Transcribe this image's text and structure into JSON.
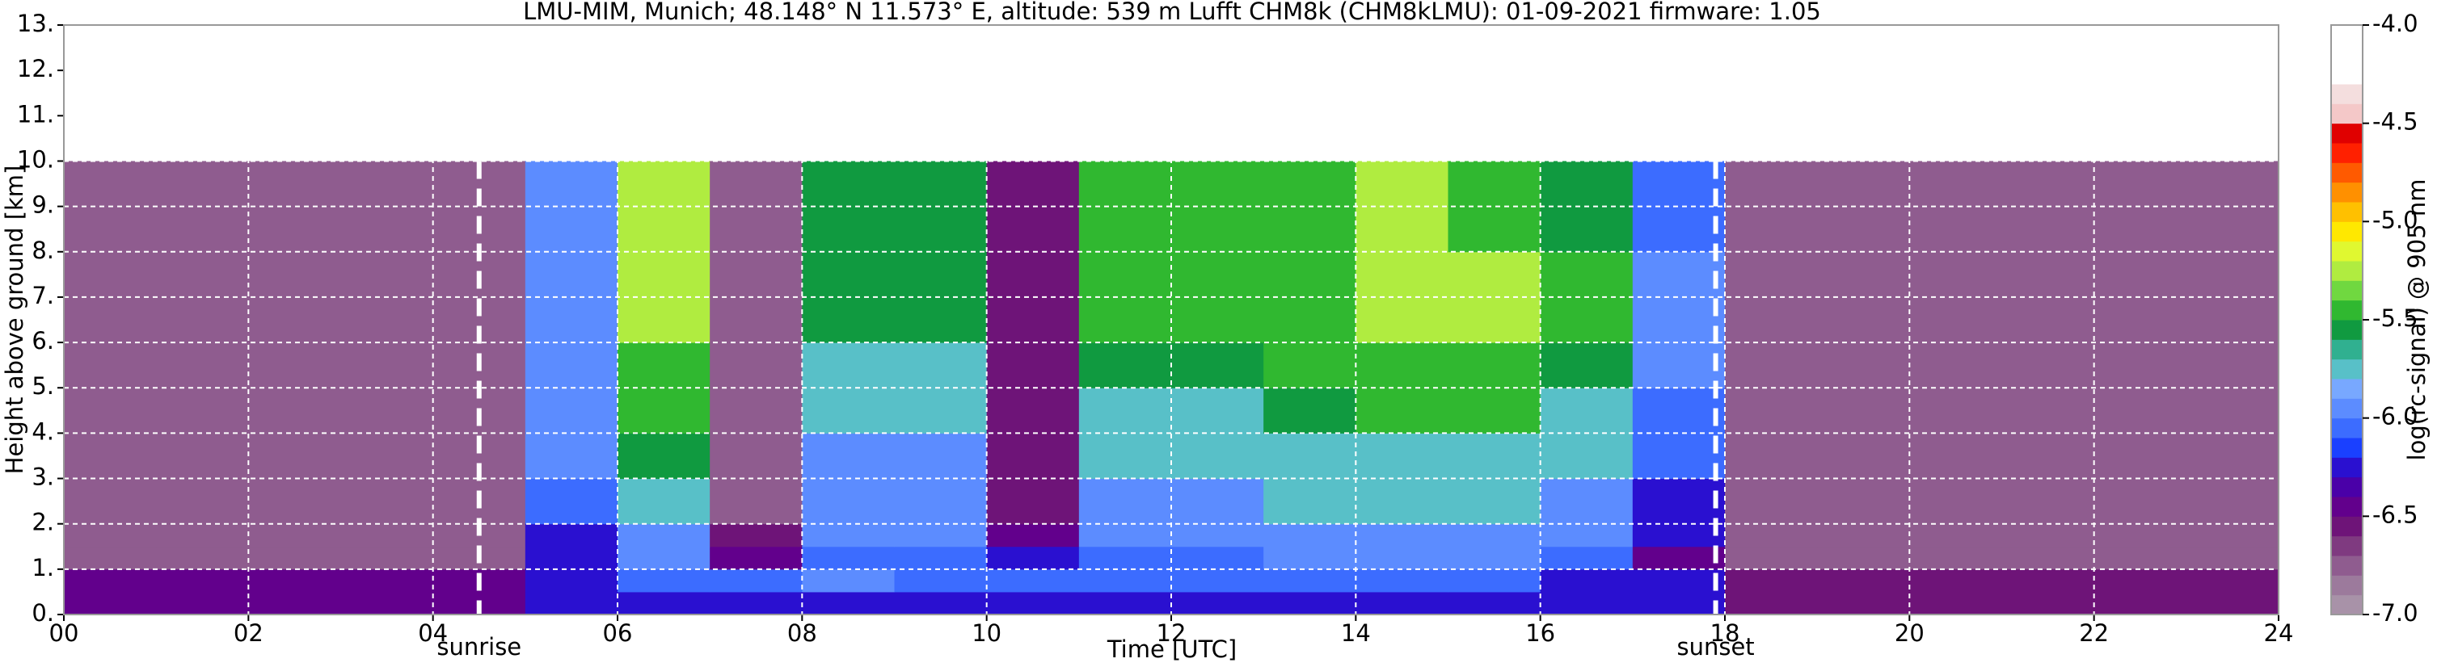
{
  "chart_data": {
    "type": "heatmap",
    "title": "LMU-MIM, Munich; 48.148° N 11.573° E, altitude: 539 m    Lufft CHM8k (CHM8kLMU): 01-09-2021    firmware: 1.05",
    "x_label": "Time [UTC]",
    "y_label": "Height above ground [km]",
    "colorbar_label": "log(rc-signal) @ 905 nm",
    "xlim": [
      0,
      24
    ],
    "xticks": [
      {
        "value": 0,
        "label": "00"
      },
      {
        "value": 2,
        "label": "02"
      },
      {
        "value": 4,
        "label": "04"
      },
      {
        "value": 6,
        "label": "06"
      },
      {
        "value": 8,
        "label": "08"
      },
      10,
      12,
      14,
      16,
      18,
      20,
      22,
      24
    ],
    "ylim": [
      0,
      13
    ],
    "yticks": [
      {
        "value": 0,
        "label": "0."
      },
      {
        "value": 1,
        "label": "1."
      },
      {
        "value": 2,
        "label": "2."
      },
      {
        "value": 3,
        "label": "3."
      },
      {
        "value": 4,
        "label": "4."
      },
      {
        "value": 5,
        "label": "5."
      },
      {
        "value": 6,
        "label": "6."
      },
      {
        "value": 7,
        "label": "7."
      },
      {
        "value": 8,
        "label": "8."
      },
      {
        "value": 9,
        "label": "9."
      },
      {
        "value": 10,
        "label": "10."
      },
      {
        "value": 11,
        "label": "11."
      },
      {
        "value": 12,
        "label": "12."
      },
      {
        "value": 13,
        "label": "13."
      }
    ],
    "grid": true,
    "clim": [
      -7,
      -4
    ],
    "cticks": [
      {
        "value": -4,
        "label": "-4.0"
      },
      -4.5,
      {
        "value": -5,
        "label": "-5.0"
      },
      -5.5,
      {
        "value": -6,
        "label": "-6.0"
      },
      -6.5,
      {
        "value": -7,
        "label": "-7.0"
      }
    ],
    "colors": [
      "#a892a8",
      "#9c7a9c",
      "#8f5c8f",
      "#7f3a80",
      "#6e1478",
      "#62008c",
      "#4a00a8",
      "#2a10d0",
      "#1a40ff",
      "#3c6cff",
      "#5c8cff",
      "#78a8ff",
      "#58c0c8",
      "#30b090",
      "#109a40",
      "#30b830",
      "#70d840",
      "#b0ec40",
      "#e0f830",
      "#ffe800",
      "#ffc000",
      "#ff9000",
      "#ff5a00",
      "#ff2000",
      "#e00000",
      "#f4c8c8",
      "#f4dede",
      "#ffffff",
      "#ffffff",
      "#ffffff"
    ],
    "x_edges": [
      0,
      1,
      2,
      3,
      4,
      5,
      6,
      7,
      8,
      9,
      10,
      11,
      12,
      13,
      14,
      15,
      16,
      17,
      18,
      19,
      20,
      21,
      22,
      23,
      24
    ],
    "y_edges": [
      0,
      0.5,
      1,
      1.5,
      2,
      3,
      4,
      5,
      6,
      8,
      10
    ],
    "z": [
      [
        -6.5,
        -6.5,
        -6.5,
        -6.5,
        -6.4,
        -6.2,
        -6.2,
        -6.2,
        -6.2,
        -6.2,
        -6.2,
        -6.2,
        -6.2,
        -6.2,
        -6.2,
        -6.2,
        -6.3,
        -6.3,
        -6.6,
        -6.6,
        -6.6,
        -6.6,
        -6.6,
        -6.6
      ],
      [
        -6.5,
        -6.5,
        -6.5,
        -6.5,
        -6.4,
        -6.2,
        -6.1,
        -6.1,
        -6.0,
        -6.1,
        -6.1,
        -6.1,
        -6.1,
        -6.1,
        -6.1,
        -6.1,
        -6.3,
        -6.3,
        -6.6,
        -6.6,
        -6.6,
        -6.6,
        -6.6,
        -6.6
      ],
      [
        -6.8,
        -6.8,
        -6.8,
        -6.8,
        -6.7,
        -6.2,
        -6.0,
        -6.5,
        -6.1,
        -6.1,
        -6.3,
        -6.1,
        -6.1,
        -6.0,
        -6.0,
        -6.0,
        -6.1,
        -6.4,
        -6.8,
        -6.8,
        -6.8,
        -6.8,
        -6.8,
        -6.8
      ],
      [
        -6.7,
        -6.8,
        -6.8,
        -6.8,
        -6.7,
        -6.2,
        -5.9,
        -6.6,
        -6.0,
        -6.0,
        -6.5,
        -6.0,
        -6.0,
        -5.9,
        -5.9,
        -5.9,
        -6.0,
        -6.3,
        -6.8,
        -6.8,
        -6.8,
        -6.8,
        -6.8,
        -6.8
      ],
      [
        -6.7,
        -6.8,
        -6.8,
        -6.8,
        -6.7,
        -6.1,
        -5.8,
        -6.7,
        -5.9,
        -5.9,
        -6.6,
        -5.9,
        -5.9,
        -5.8,
        -5.8,
        -5.8,
        -5.9,
        -6.2,
        -6.8,
        -6.8,
        -6.8,
        -6.8,
        -6.8,
        -6.8
      ],
      [
        -6.8,
        -6.8,
        -6.8,
        -6.8,
        -6.7,
        -6.0,
        -5.6,
        -6.7,
        -5.9,
        -5.9,
        -6.6,
        -5.8,
        -5.8,
        -5.7,
        -5.7,
        -5.7,
        -5.8,
        -6.1,
        -6.8,
        -6.8,
        -6.8,
        -6.8,
        -6.8,
        -6.8
      ],
      [
        -6.8,
        -6.8,
        -6.8,
        -6.8,
        -6.7,
        -6.0,
        -5.5,
        -6.7,
        -5.8,
        -5.8,
        -6.6,
        -5.7,
        -5.7,
        -5.6,
        -5.5,
        -5.5,
        -5.7,
        -6.1,
        -6.8,
        -6.8,
        -6.8,
        -6.8,
        -6.8,
        -6.8
      ],
      [
        -6.8,
        -6.8,
        -6.8,
        -6.8,
        -6.7,
        -5.9,
        -5.4,
        -6.7,
        -5.7,
        -5.7,
        -6.6,
        -5.6,
        -5.6,
        -5.5,
        -5.4,
        -5.4,
        -5.6,
        -6.0,
        -6.8,
        -6.8,
        -6.8,
        -6.8,
        -6.8,
        -6.8
      ],
      [
        -6.8,
        -6.8,
        -6.8,
        -6.8,
        -6.7,
        -5.9,
        -5.3,
        -6.7,
        -5.6,
        -5.6,
        -6.6,
        -5.5,
        -5.5,
        -5.4,
        -5.3,
        -5.3,
        -5.5,
        -6.0,
        -6.8,
        -6.8,
        -6.8,
        -6.8,
        -6.8,
        -6.8
      ],
      [
        -6.8,
        -6.8,
        -6.8,
        -6.8,
        -6.7,
        -6.0,
        -5.3,
        -6.7,
        -5.6,
        -5.6,
        -6.6,
        -5.5,
        -5.5,
        -5.4,
        -5.3,
        -5.4,
        -5.6,
        -6.1,
        -6.8,
        -6.8,
        -6.8,
        -6.8,
        -6.8,
        -6.8
      ]
    ],
    "vlines": [
      {
        "x": 4.5,
        "label": "sunrise"
      },
      {
        "x": 17.9,
        "label": "sunset"
      }
    ]
  }
}
